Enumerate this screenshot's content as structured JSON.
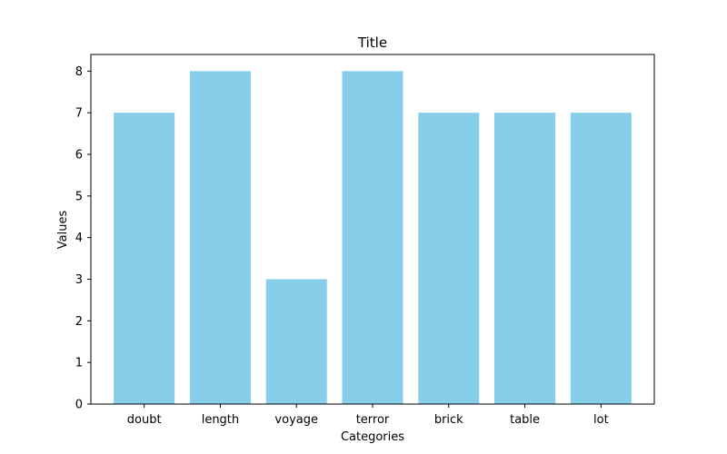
{
  "chart_data": {
    "type": "bar",
    "title": "Title",
    "xlabel": "Categories",
    "ylabel": "Values",
    "categories": [
      "doubt",
      "length",
      "voyage",
      "terror",
      "brick",
      "table",
      "lot"
    ],
    "values": [
      7,
      8,
      3,
      8,
      7,
      7,
      7
    ],
    "ylim": [
      0,
      8.4
    ],
    "yticks": [
      0,
      1,
      2,
      3,
      4,
      5,
      6,
      7,
      8
    ],
    "bar_color": "#87ceeb",
    "grid": false,
    "legend": "none"
  }
}
